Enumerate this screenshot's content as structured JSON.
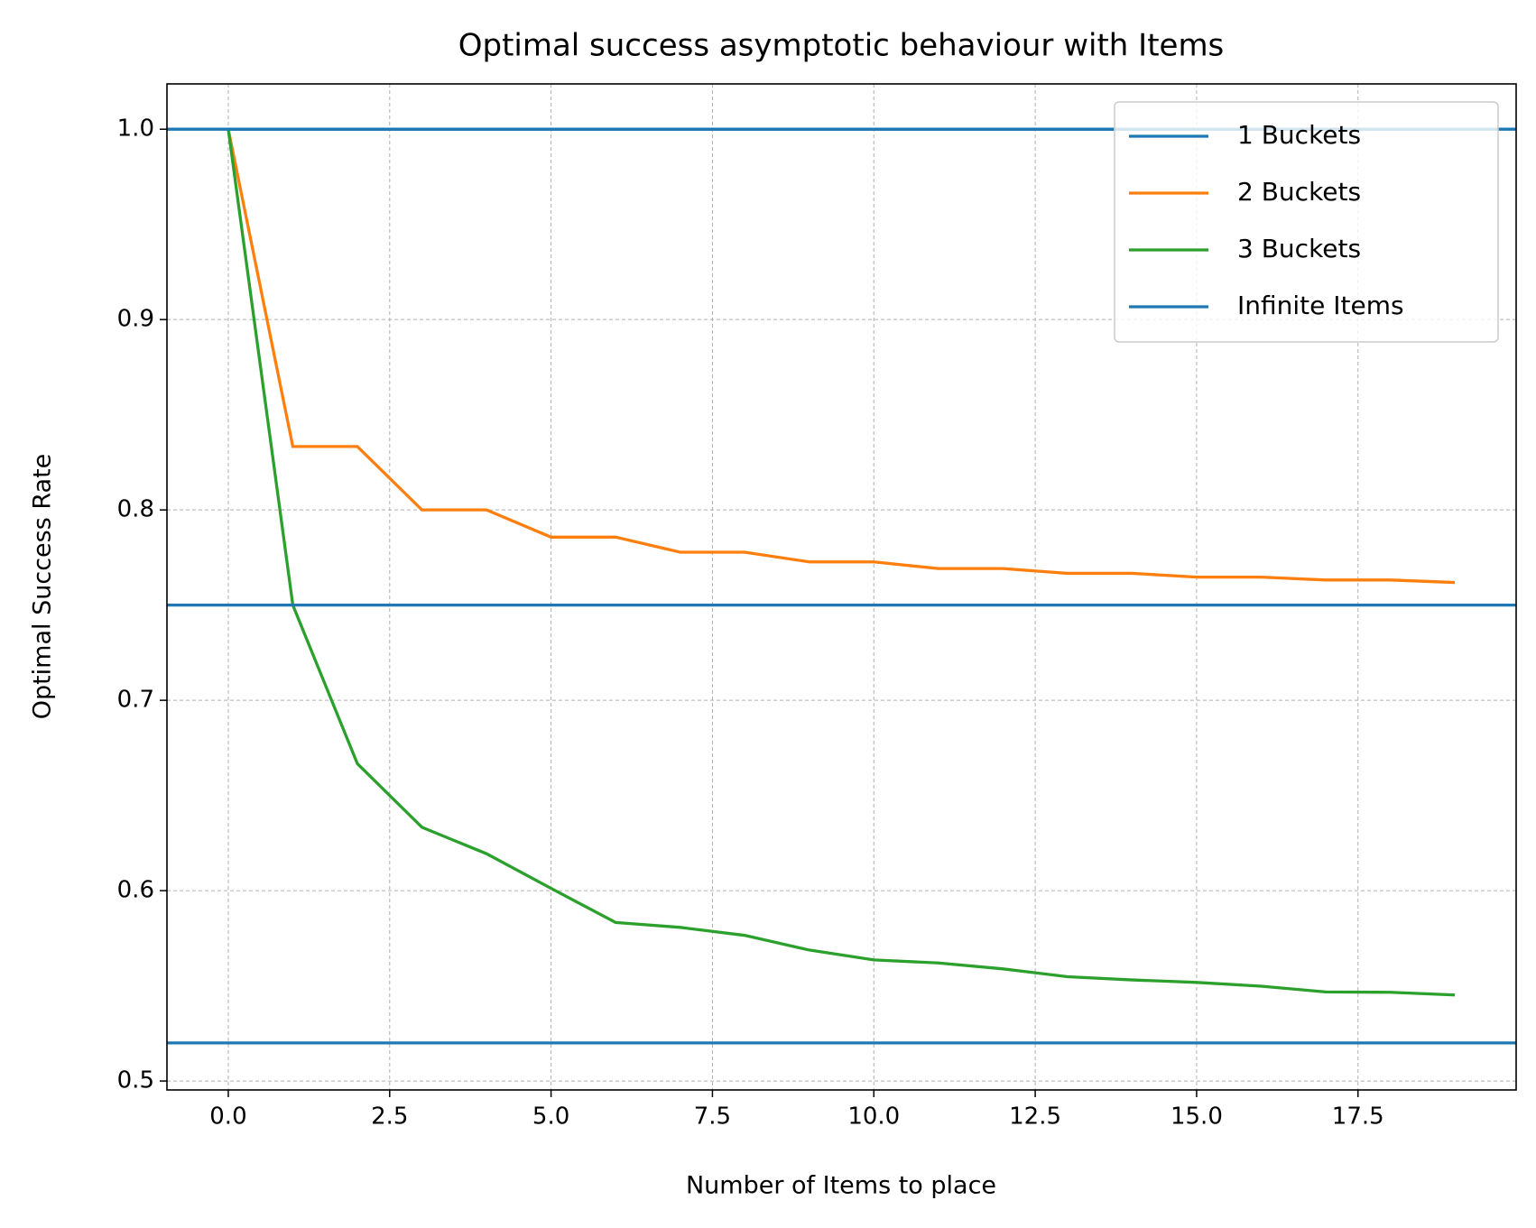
{
  "chart_data": {
    "type": "line",
    "title": "Optimal success asymptotic behaviour with Items",
    "x_label": "Number of Items to place",
    "y_label": "Optimal Success Rate",
    "x": [
      0,
      1,
      2,
      3,
      4,
      5,
      6,
      7,
      8,
      9,
      10,
      11,
      12,
      13,
      14,
      15,
      16,
      17,
      18,
      19
    ],
    "series": [
      {
        "name": "1 Buckets",
        "color": "#1f77b4",
        "values": [
          1,
          1,
          1,
          1,
          1,
          1,
          1,
          1,
          1,
          1,
          1,
          1,
          1,
          1,
          1,
          1,
          1,
          1,
          1,
          1
        ]
      },
      {
        "name": "2 Buckets",
        "color": "#ff7f0e",
        "values": [
          1.0,
          0.8333,
          0.8333,
          0.8,
          0.8,
          0.7857,
          0.7857,
          0.7778,
          0.7778,
          0.7727,
          0.7727,
          0.7692,
          0.7692,
          0.7667,
          0.7667,
          0.7647,
          0.7647,
          0.7632,
          0.7632,
          0.7619
        ]
      },
      {
        "name": "3 Buckets",
        "color": "#2ca02c",
        "values": [
          1.0,
          0.75,
          0.6667,
          0.6333,
          0.6194,
          0.6012,
          0.5833,
          0.5807,
          0.5765,
          0.5688,
          0.5636,
          0.562,
          0.5589,
          0.5548,
          0.5531,
          0.5518,
          0.5498,
          0.5468,
          0.5466,
          0.5452
        ]
      }
    ],
    "hlines": {
      "name": "Infinite Items",
      "color": "#1f77b4",
      "values": [
        1.0,
        0.75,
        0.52
      ]
    },
    "xlim": [
      -0.95,
      19.95
    ],
    "ylim": [
      0.4953,
      1.0238
    ],
    "xticks": [
      {
        "value": 0,
        "label": "0.0"
      },
      2.5,
      {
        "value": 5,
        "label": "5.0"
      },
      7.5,
      {
        "value": 10,
        "label": "10.0"
      },
      12.5,
      {
        "value": 15,
        "label": "15.0"
      },
      17.5
    ],
    "yticks": [
      0.5,
      0.6,
      0.7,
      0.8,
      0.9,
      {
        "value": 1,
        "label": "1.0"
      }
    ],
    "grid": true,
    "legend": "upper right"
  }
}
